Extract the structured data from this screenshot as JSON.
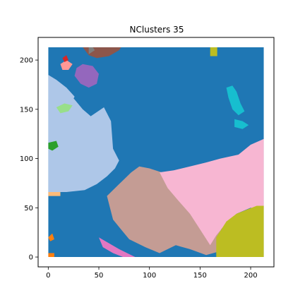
{
  "chart_data": {
    "type": "heatmap",
    "title": "NClusters 35",
    "xlabel": "",
    "ylabel": "",
    "xlim": [
      -10,
      223
    ],
    "ylim": [
      -10,
      223
    ],
    "extent": [
      0,
      213,
      0,
      213
    ],
    "x_ticks": [
      0,
      50,
      100,
      150,
      200
    ],
    "y_ticks": [
      0,
      50,
      100,
      150,
      200
    ],
    "grid": false,
    "background_cluster_color": "#1f77b4",
    "regions": [
      {
        "name": "light-blue-west",
        "color": "#aec7e8",
        "points": [
          [
            0,
            160
          ],
          [
            8,
            170
          ],
          [
            18,
            168
          ],
          [
            26,
            160
          ],
          [
            34,
            150
          ],
          [
            42,
            143
          ],
          [
            55,
            152
          ],
          [
            62,
            138
          ],
          [
            64,
            110
          ],
          [
            70,
            98
          ],
          [
            66,
            90
          ],
          [
            58,
            82
          ],
          [
            48,
            74
          ],
          [
            36,
            68
          ],
          [
            18,
            66
          ],
          [
            0,
            66
          ]
        ]
      },
      {
        "name": "light-blue-northwest",
        "color": "#aec7e8",
        "points": [
          [
            0,
            185
          ],
          [
            8,
            180
          ],
          [
            18,
            172
          ],
          [
            26,
            163
          ],
          [
            22,
            154
          ],
          [
            12,
            150
          ],
          [
            0,
            146
          ]
        ]
      },
      {
        "name": "tan-south-central",
        "color": "#c49c94",
        "points": [
          [
            58,
            62
          ],
          [
            70,
            74
          ],
          [
            82,
            86
          ],
          [
            90,
            92
          ],
          [
            100,
            90
          ],
          [
            112,
            86
          ],
          [
            124,
            76
          ],
          [
            136,
            68
          ],
          [
            146,
            56
          ],
          [
            160,
            42
          ],
          [
            170,
            30
          ],
          [
            176,
            16
          ],
          [
            170,
            6
          ],
          [
            156,
            2
          ],
          [
            140,
            8
          ],
          [
            126,
            12
          ],
          [
            110,
            4
          ],
          [
            96,
            10
          ],
          [
            80,
            18
          ],
          [
            72,
            28
          ],
          [
            64,
            38
          ]
        ]
      },
      {
        "name": "pink-east",
        "color": "#f7b6d2",
        "points": [
          [
            110,
            86
          ],
          [
            124,
            88
          ],
          [
            140,
            92
          ],
          [
            156,
            96
          ],
          [
            170,
            100
          ],
          [
            188,
            104
          ],
          [
            200,
            114
          ],
          [
            213,
            120
          ],
          [
            213,
            48
          ],
          [
            200,
            50
          ],
          [
            186,
            44
          ],
          [
            174,
            32
          ],
          [
            166,
            22
          ],
          [
            160,
            12
          ],
          [
            150,
            28
          ],
          [
            140,
            44
          ],
          [
            128,
            58
          ],
          [
            118,
            70
          ]
        ]
      },
      {
        "name": "olive-southeast",
        "color": "#bcbd22",
        "points": [
          [
            166,
            2
          ],
          [
            166,
            20
          ],
          [
            176,
            36
          ],
          [
            186,
            44
          ],
          [
            196,
            48
          ],
          [
            206,
            52
          ],
          [
            213,
            52
          ],
          [
            213,
            0
          ],
          [
            166,
            0
          ]
        ]
      },
      {
        "name": "olive-north",
        "color": "#bcbd22",
        "points": [
          [
            160,
            204
          ],
          [
            167,
            204
          ],
          [
            167,
            213
          ],
          [
            160,
            213
          ]
        ]
      },
      {
        "name": "brown-north",
        "color": "#8c564b",
        "points": [
          [
            34,
            213
          ],
          [
            40,
            205
          ],
          [
            48,
            202
          ],
          [
            60,
            204
          ],
          [
            70,
            210
          ],
          [
            72,
            213
          ]
        ]
      },
      {
        "name": "purple-north",
        "color": "#9467bd",
        "points": [
          [
            26,
            184
          ],
          [
            32,
            176
          ],
          [
            40,
            172
          ],
          [
            48,
            176
          ],
          [
            50,
            186
          ],
          [
            44,
            194
          ],
          [
            34,
            196
          ],
          [
            28,
            192
          ]
        ]
      },
      {
        "name": "cyan-east",
        "color": "#17becf",
        "points": [
          [
            176,
            172
          ],
          [
            182,
            174
          ],
          [
            186,
            168
          ],
          [
            190,
            156
          ],
          [
            194,
            148
          ],
          [
            188,
            144
          ],
          [
            182,
            150
          ],
          [
            178,
            162
          ]
        ]
      },
      {
        "name": "cyan-east-small",
        "color": "#17becf",
        "points": [
          [
            184,
            140
          ],
          [
            192,
            138
          ],
          [
            198,
            134
          ],
          [
            192,
            130
          ],
          [
            184,
            132
          ]
        ]
      },
      {
        "name": "pink-southwest",
        "color": "#e377c2",
        "points": [
          [
            50,
            20
          ],
          [
            60,
            14
          ],
          [
            70,
            8
          ],
          [
            78,
            4
          ],
          [
            86,
            0
          ],
          [
            74,
            0
          ],
          [
            64,
            4
          ],
          [
            54,
            10
          ]
        ]
      },
      {
        "name": "light-green-west",
        "color": "#98df8a",
        "points": [
          [
            8,
            152
          ],
          [
            16,
            156
          ],
          [
            24,
            154
          ],
          [
            20,
            148
          ],
          [
            12,
            146
          ]
        ]
      },
      {
        "name": "green-west",
        "color": "#2ca02c",
        "points": [
          [
            0,
            116
          ],
          [
            8,
            118
          ],
          [
            10,
            112
          ],
          [
            4,
            108
          ],
          [
            0,
            110
          ]
        ]
      },
      {
        "name": "salmon-northwest",
        "color": "#ff9896",
        "points": [
          [
            12,
            196
          ],
          [
            18,
            200
          ],
          [
            24,
            196
          ],
          [
            20,
            190
          ],
          [
            14,
            190
          ]
        ]
      },
      {
        "name": "red-northwest",
        "color": "#d62728",
        "points": [
          [
            14,
            202
          ],
          [
            18,
            205
          ],
          [
            20,
            200
          ],
          [
            16,
            198
          ]
        ]
      },
      {
        "name": "orange-southwest",
        "color": "#ff7f0e",
        "points": [
          [
            0,
            20
          ],
          [
            4,
            24
          ],
          [
            6,
            18
          ],
          [
            2,
            16
          ]
        ]
      },
      {
        "name": "orange-southwest-edge",
        "color": "#ff7f0e",
        "points": [
          [
            0,
            0
          ],
          [
            6,
            0
          ],
          [
            6,
            4
          ],
          [
            0,
            4
          ]
        ]
      },
      {
        "name": "peach-west",
        "color": "#ffbb78",
        "points": [
          [
            0,
            62
          ],
          [
            12,
            62
          ],
          [
            12,
            66
          ],
          [
            0,
            66
          ]
        ]
      },
      {
        "name": "gray-north",
        "color": "#7f7f7f",
        "points": [
          [
            40,
            206
          ],
          [
            46,
            210
          ],
          [
            44,
            213
          ],
          [
            40,
            213
          ]
        ]
      }
    ]
  }
}
